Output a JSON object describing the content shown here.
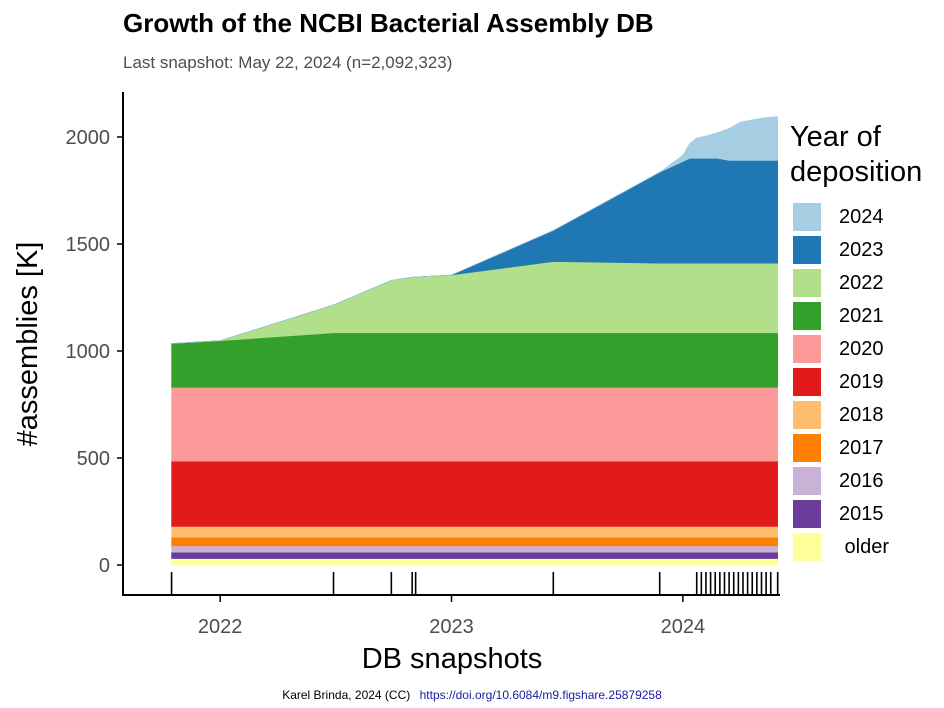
{
  "chart_data": {
    "type": "area",
    "title": "Growth of the NCBI Bacterial Assembly DB",
    "subtitle": "Last snapshot: May 22, 2024 (n=2,092,323)",
    "xlabel": "DB snapshots",
    "ylabel": "#assemblies [K]",
    "x_unit": "year",
    "xlim": [
      2021.58,
      2024.42
    ],
    "ylim": [
      -140,
      2210
    ],
    "xticks": [
      2022,
      2023,
      2024
    ],
    "xtick_labels": [
      "2022",
      "2023",
      "2024"
    ],
    "yticks": [
      0,
      500,
      1000,
      1500,
      2000
    ],
    "ytick_labels": [
      "0",
      "500",
      "1000",
      "1500",
      "2000"
    ],
    "legend_title": "Year of deposition",
    "legend_position": "right",
    "x": [
      2021.79,
      2022.0,
      2022.49,
      2022.74,
      2022.83,
      2023.0,
      2023.44,
      2023.9,
      2024.0,
      2024.03,
      2024.06,
      2024.1,
      2024.15,
      2024.2,
      2024.25,
      2024.3,
      2024.35,
      2024.41
    ],
    "series": [
      {
        "name": "older",
        "color": "#FFFF99",
        "values": [
          30,
          30,
          30,
          30,
          30,
          30,
          30,
          30,
          30,
          30,
          30,
          30,
          30,
          30,
          30,
          30,
          30,
          30
        ]
      },
      {
        "name": "2015",
        "color": "#6A3D9A",
        "values": [
          30,
          30,
          30,
          30,
          30,
          30,
          30,
          30,
          30,
          30,
          30,
          30,
          30,
          30,
          30,
          30,
          30,
          30
        ]
      },
      {
        "name": "2016",
        "color": "#CAB2D6",
        "values": [
          30,
          30,
          30,
          30,
          30,
          30,
          30,
          30,
          30,
          30,
          30,
          30,
          30,
          30,
          30,
          30,
          30,
          30
        ]
      },
      {
        "name": "2017",
        "color": "#FF7F00",
        "values": [
          40,
          40,
          40,
          40,
          40,
          40,
          40,
          40,
          40,
          40,
          40,
          40,
          40,
          40,
          40,
          40,
          40,
          40
        ]
      },
      {
        "name": "2018",
        "color": "#FDBF6F",
        "values": [
          50,
          50,
          50,
          50,
          50,
          50,
          50,
          50,
          50,
          50,
          50,
          50,
          50,
          50,
          50,
          50,
          50,
          50
        ]
      },
      {
        "name": "2019",
        "color": "#E31A1C",
        "values": [
          305,
          305,
          305,
          305,
          305,
          305,
          305,
          305,
          305,
          305,
          305,
          305,
          305,
          305,
          305,
          305,
          305,
          305
        ]
      },
      {
        "name": "2020",
        "color": "#FB9A99",
        "values": [
          345,
          345,
          345,
          345,
          345,
          345,
          345,
          345,
          345,
          345,
          345,
          345,
          345,
          345,
          345,
          345,
          345,
          345
        ]
      },
      {
        "name": "2021",
        "color": "#33A02C",
        "values": [
          205,
          218,
          255,
          255,
          255,
          255,
          255,
          255,
          255,
          255,
          255,
          255,
          255,
          255,
          255,
          255,
          255,
          255
        ]
      },
      {
        "name": "2022",
        "color": "#B2DF8A",
        "values": [
          0,
          0,
          130,
          245,
          260,
          270,
          333,
          325,
          325,
          325,
          325,
          325,
          325,
          325,
          325,
          325,
          325,
          325
        ]
      },
      {
        "name": "2023",
        "color": "#1F78B4",
        "values": [
          0,
          0,
          0,
          0,
          0,
          0,
          145,
          425,
          475,
          490,
          490,
          490,
          490,
          480,
          480,
          480,
          480,
          480
        ]
      },
      {
        "name": "2024",
        "color": "#A6CEE3",
        "values": [
          0,
          0,
          0,
          0,
          0,
          0,
          0,
          0,
          30,
          70,
          95,
          105,
          120,
          150,
          180,
          190,
          200,
          205
        ]
      }
    ],
    "snapshot_ticks": [
      2021.79,
      2022.49,
      2022.74,
      2022.83,
      2022.845,
      2023.44,
      2023.9,
      2024.06,
      2024.08,
      2024.1,
      2024.12,
      2024.14,
      2024.16,
      2024.18,
      2024.2,
      2024.22,
      2024.24,
      2024.26,
      2024.28,
      2024.3,
      2024.32,
      2024.34,
      2024.36,
      2024.38,
      2024.41
    ]
  },
  "footer": {
    "credit": "Karel Brinda, 2024 (CC)",
    "link": "https://doi.org/10.6084/m9.figshare.25879258"
  }
}
